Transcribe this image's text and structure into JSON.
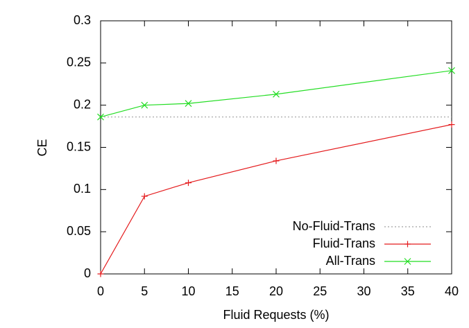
{
  "chart_data": {
    "type": "line",
    "xlabel": "Fluid Requests (%)",
    "ylabel": "CE",
    "x": [
      0,
      5,
      10,
      20,
      40
    ],
    "xlim": [
      0,
      40
    ],
    "xticks": [
      0,
      5,
      10,
      15,
      20,
      25,
      30,
      35,
      40
    ],
    "ylim": [
      0,
      0.3
    ],
    "yticks": [
      0,
      0.05,
      0.1,
      0.15,
      0.2,
      0.25,
      0.3
    ],
    "legend": "lower right",
    "series": [
      {
        "name": "No-Fluid-Trans",
        "color": "#a0a0a0",
        "dash": "dotted",
        "marker": "none",
        "values": [
          0.186,
          0.186,
          0.186,
          0.186,
          0.186
        ]
      },
      {
        "name": "Fluid-Trans",
        "color": "#e41a1c",
        "dash": "solid",
        "marker": "plus",
        "values": [
          0,
          0.092,
          0.108,
          0.134,
          0.177
        ]
      },
      {
        "name": "All-Trans",
        "color": "#22dd22",
        "dash": "solid",
        "marker": "cross",
        "values": [
          0.186,
          0.2,
          0.202,
          0.213,
          0.241
        ]
      }
    ]
  }
}
